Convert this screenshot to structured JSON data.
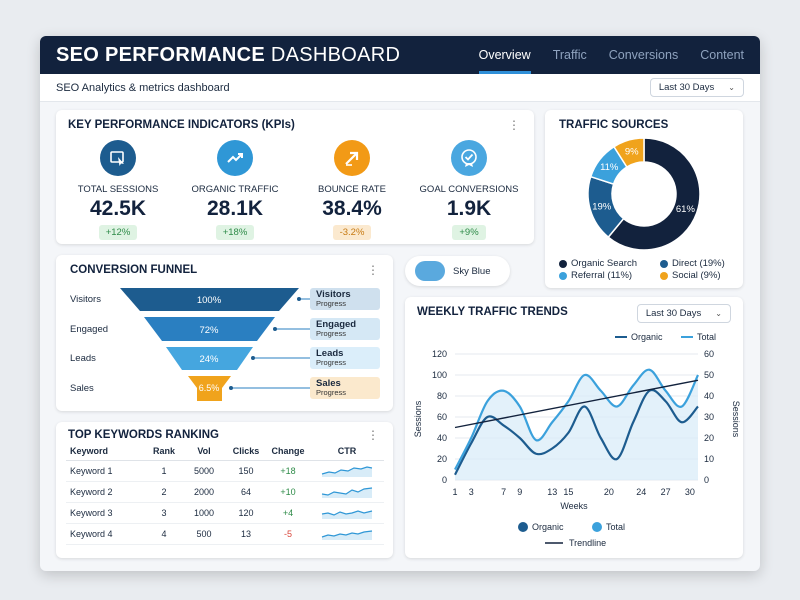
{
  "header": {
    "title_bold": "SEO PERFORMANCE",
    "title_rest": " DASHBOARD",
    "tabs": [
      {
        "label": "Overview",
        "active": true
      },
      {
        "label": "Traffic",
        "active": false
      },
      {
        "label": "Conversions",
        "active": false
      },
      {
        "label": "Content",
        "active": false
      }
    ]
  },
  "subheader": {
    "subtitle": "SEO Analytics & metrics dashboard",
    "range_label": "Last 30 Days"
  },
  "kpi": {
    "title": "KEY PERFORMANCE INDICATORS (KPIs)",
    "items": [
      {
        "label": "TOTAL SESSIONS",
        "value": "42.5K",
        "change": "+12%",
        "icon": "cursor-click-icon",
        "color": "#1d5c8f"
      },
      {
        "label": "ORGANIC TRAFFIC",
        "value": "28.1K",
        "change": "+18%",
        "icon": "trend-up-icon",
        "color": "#2f97d6"
      },
      {
        "label": "BOUNCE RATE",
        "value": "38.4%",
        "change": "-3.2%",
        "icon": "arrow-up-right-icon",
        "color": "#f29a16"
      },
      {
        "label": "GOAL CONVERSIONS",
        "value": "1.9K",
        "change": "+9%",
        "icon": "check-badge-icon",
        "color": "#4aa7e0"
      }
    ]
  },
  "traffic_sources": {
    "title": "TRAFFIC SOURCES",
    "legend": [
      {
        "label": "Organic Search",
        "color": "#12223d"
      },
      {
        "label": "Direct (19%)",
        "color": "#1d5c8f"
      },
      {
        "label": "Referral (11%)",
        "color": "#3ba1dc"
      },
      {
        "label": "Social (9%)",
        "color": "#f0a31c"
      }
    ],
    "slices": [
      {
        "label": "61%",
        "value": 61,
        "color": "#12223d"
      },
      {
        "label": "19%",
        "value": 19,
        "color": "#1d5c8f"
      },
      {
        "label": "11%",
        "value": 11,
        "color": "#3ba1dc"
      },
      {
        "label": "9%",
        "value": 9,
        "color": "#f0a31c"
      }
    ]
  },
  "sky_pill": {
    "label": "Sky Blue"
  },
  "funnel": {
    "title": "CONVERSION FUNNEL",
    "stages": [
      {
        "label": "Visitors",
        "percent": "100%",
        "tag": "Visitors",
        "tag_sub": "Progress",
        "color": "#1d5c8f",
        "tag_bg": "#cfe0ee"
      },
      {
        "label": "Engaged",
        "percent": "72%",
        "tag": "Engaged",
        "tag_sub": "Progress",
        "color": "#2a7fc1",
        "tag_bg": "#d5e8f5"
      },
      {
        "label": "Leads",
        "percent": "24%",
        "tag": "Leads",
        "tag_sub": "Progress",
        "color": "#45a6df",
        "tag_bg": "#dbeefa"
      },
      {
        "label": "Sales",
        "percent": "6.5%",
        "tag": "Sales",
        "tag_sub": "Progress",
        "color": "#f0a31c",
        "tag_bg": "#fbe9cd"
      }
    ]
  },
  "keywords": {
    "title": "TOP KEYWORDS RANKING",
    "columns": [
      "Keyword",
      "Rank",
      "Vol",
      "Clicks",
      "Change",
      "CTR"
    ],
    "rows": [
      {
        "keyword": "Keyword 1",
        "rank": "1",
        "vol": "5000",
        "clicks": "150",
        "change": "+18",
        "trend": "up"
      },
      {
        "keyword": "Keyword 2",
        "rank": "2",
        "vol": "2000",
        "clicks": "64",
        "change": "+10",
        "trend": "up"
      },
      {
        "keyword": "Keyword 3",
        "rank": "3",
        "vol": "1000",
        "clicks": "120",
        "change": "+4",
        "trend": "up"
      },
      {
        "keyword": "Keyword 4",
        "rank": "4",
        "vol": "500",
        "clicks": "13",
        "change": "-5",
        "trend": "down"
      }
    ]
  },
  "weekly": {
    "title": "WEEKLY TRAFFIC TRENDS",
    "range_label": "Last 30 Days"
  },
  "chart_data": [
    {
      "type": "pie",
      "title": "TRAFFIC SOURCES",
      "categories": [
        "Organic Search",
        "Direct",
        "Referral",
        "Social"
      ],
      "values": [
        61,
        19,
        11,
        9
      ]
    },
    {
      "type": "line",
      "title": "WEEKLY TRAFFIC TRENDS",
      "xlabel": "Weeks",
      "ylabel": "Sessions",
      "y2label": "Sessions",
      "x": [
        1,
        3,
        5,
        7,
        9,
        11,
        13,
        15,
        17,
        19,
        21,
        23,
        25,
        27,
        29,
        31
      ],
      "xticks": [
        1,
        3,
        7,
        9,
        13,
        15,
        20,
        24,
        27,
        30
      ],
      "ylim": [
        0,
        120
      ],
      "y2lim": [
        0,
        60
      ],
      "yticks": [
        0,
        20,
        40,
        60,
        80,
        100,
        120
      ],
      "y2ticks": [
        0,
        10,
        20,
        30,
        40,
        50,
        60
      ],
      "series": [
        {
          "name": "Organic",
          "color": "#1d5c8f",
          "values": [
            5,
            35,
            60,
            52,
            40,
            25,
            30,
            45,
            70,
            40,
            20,
            55,
            85,
            75,
            55,
            70
          ]
        },
        {
          "name": "Total",
          "color": "#3ba1dc",
          "values": [
            10,
            40,
            75,
            85,
            70,
            38,
            55,
            75,
            100,
            85,
            70,
            90,
            105,
            85,
            70,
            100
          ]
        },
        {
          "name": "Trendline",
          "color": "#12223d",
          "values": [
            50,
            53,
            56,
            59,
            62,
            65,
            68,
            71,
            74,
            77,
            80,
            83,
            86,
            89,
            92,
            95
          ]
        }
      ]
    }
  ]
}
